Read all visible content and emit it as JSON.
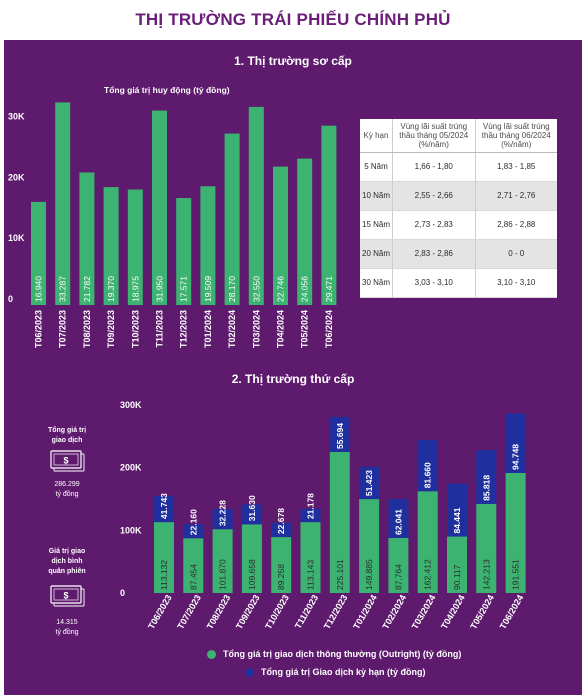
{
  "page_title": "THỊ TRƯỜNG TRÁI PHIẾU CHÍNH PHỦ",
  "primary": {
    "section_title": "1. Thị trường sơ cấp",
    "chart_title": "Tổng giá trị huy động (tỷ đồng)"
  },
  "secondary": {
    "section_title": "2. Thị trường thứ cấp"
  },
  "colors": {
    "panel": "#5e1a6d",
    "green": "#3cb371",
    "navy": "#1f2f9e",
    "title": "#6a1e78"
  },
  "side_stats": {
    "total": {
      "label_lines": [
        "Tổng giá trị",
        "giao dịch"
      ],
      "value": "286.299",
      "unit": "tỷ đồng",
      "icon": "money-icon"
    },
    "avg": {
      "label_lines": [
        "Giá trị giao",
        "dịch bình",
        "quân phiên"
      ],
      "value": "14.315",
      "unit": "tỷ đồng",
      "icon": "money-icon"
    }
  },
  "rates_table": {
    "headers": [
      "Kỳ hạn",
      "Vùng lãi suất trúng thầu tháng 05/2024 (%/năm)",
      "Vùng lãi suất trúng thầu tháng 06/2024 (%/năm)"
    ],
    "rows": [
      [
        "5 Năm",
        "1,66 - 1,80",
        "1,83 - 1,85"
      ],
      [
        "10 Năm",
        "2,55 - 2,66",
        "2,71 - 2,76"
      ],
      [
        "15 Năm",
        "2,73 - 2,83",
        "2,86 - 2,88"
      ],
      [
        "20 Năm",
        "2,83 - 2,86",
        "0 - 0"
      ],
      [
        "30 Năm",
        "3,03 - 3,10",
        "3,10 - 3,10"
      ]
    ]
  },
  "chart_data": [
    {
      "type": "bar",
      "title": "Tổng giá trị huy động (tỷ đồng)",
      "categories": [
        "T06/2023",
        "T07/2023",
        "T08/2023",
        "T09/2023",
        "T10/2023",
        "T11/2023",
        "T12/2023",
        "T01/2024",
        "T02/2024",
        "T03/2024",
        "T04/2024",
        "T05/2024",
        "T06/2024"
      ],
      "values": [
        16940,
        33287,
        21782,
        19370,
        18975,
        31950,
        17571,
        19509,
        28170,
        32550,
        22746,
        24056,
        29471
      ],
      "value_labels": [
        "16.940",
        "33.287",
        "21.782",
        "19.370",
        "18.975",
        "31.950",
        "17.571",
        "19.509",
        "28.170",
        "32.550",
        "22.746",
        "24.056",
        "29.471"
      ],
      "yticks": [
        0,
        10000,
        20000,
        30000
      ],
      "ytick_labels": [
        "0",
        "10K",
        "20K",
        "30K"
      ],
      "ylim": [
        0,
        35000
      ],
      "grid": false,
      "color": "#3cb371"
    },
    {
      "type": "bar",
      "stacked": true,
      "categories": [
        "T06/2023",
        "T07/2023",
        "T08/2023",
        "T09/2023",
        "T10/2023",
        "T11/2023",
        "T12/2023",
        "T01/2024",
        "T02/2024",
        "T03/2024",
        "T04/2024",
        "T05/2024",
        "T06/2024"
      ],
      "series": [
        {
          "name": "Tổng giá trị giao dịch thông thường (Outright) (tỷ đồng)",
          "color": "#3cb371",
          "values": [
            113132,
            87454,
            101870,
            109658,
            89258,
            113143,
            225101,
            149885,
            87764,
            162412,
            90117,
            142213,
            191551
          ],
          "value_labels": [
            "113.132",
            "87.454",
            "101.870",
            "109.658",
            "89.258",
            "113.143",
            "225.101",
            "149.885",
            "87.764",
            "162.412",
            "90.117",
            "142.213",
            "191.551"
          ]
        },
        {
          "name": "Tổng giá trị Giao dịch kỳ hạn (tỷ đồng)",
          "color": "#1f2f9e",
          "values": [
            41743,
            22160,
            32228,
            31630,
            22678,
            21178,
            55694,
            51423,
            62041,
            81660,
            84441,
            85818,
            94748
          ],
          "value_labels": [
            "41.743",
            "22.160",
            "32.228",
            "31.630",
            "22.678",
            "21.178",
            "55.694",
            "51.423",
            "62.041",
            "81.660",
            "84.441",
            "85.818",
            "94.748"
          ]
        }
      ],
      "yticks": [
        0,
        100000,
        200000,
        300000
      ],
      "ytick_labels": [
        "0",
        "100K",
        "200K",
        "300K"
      ],
      "ylim": [
        0,
        300000
      ],
      "legend": "bottom",
      "grid": false
    }
  ]
}
